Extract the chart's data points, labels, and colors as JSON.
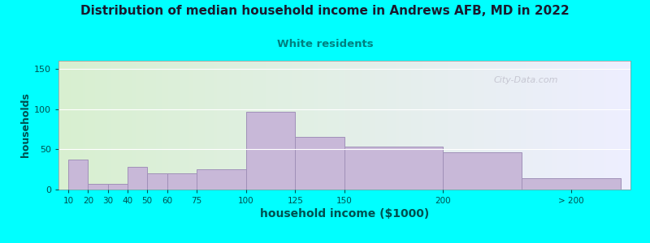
{
  "title": "Distribution of median household income in Andrews AFB, MD in 2022",
  "subtitle": "White residents",
  "xlabel": "household income ($1000)",
  "ylabel": "households",
  "background_color": "#00FFFF",
  "plot_bg_gradient_left": "#d8f0d0",
  "plot_bg_gradient_right": "#eeeeff",
  "bar_color": "#c8b8d8",
  "bar_edge_color": "#a090b8",
  "title_color": "#1a1a2e",
  "subtitle_color": "#008080",
  "axis_label_color": "#005050",
  "tick_label_color": "#005050",
  "watermark": "City-Data.com",
  "bin_edges": [
    10,
    20,
    30,
    40,
    50,
    60,
    75,
    100,
    125,
    150,
    200,
    240,
    290
  ],
  "values": [
    37,
    7,
    7,
    28,
    20,
    20,
    25,
    97,
    65,
    53,
    46,
    14
  ],
  "tick_positions": [
    10,
    20,
    30,
    40,
    50,
    60,
    75,
    100,
    125,
    150,
    200,
    265
  ],
  "tick_labels": [
    "10",
    "20",
    "30",
    "40",
    "50",
    "60",
    "75",
    "100",
    "125",
    "150",
    "200",
    "> 200"
  ],
  "ylim": [
    0,
    160
  ],
  "xlim": [
    5,
    295
  ],
  "yticks": [
    0,
    50,
    100,
    150
  ]
}
